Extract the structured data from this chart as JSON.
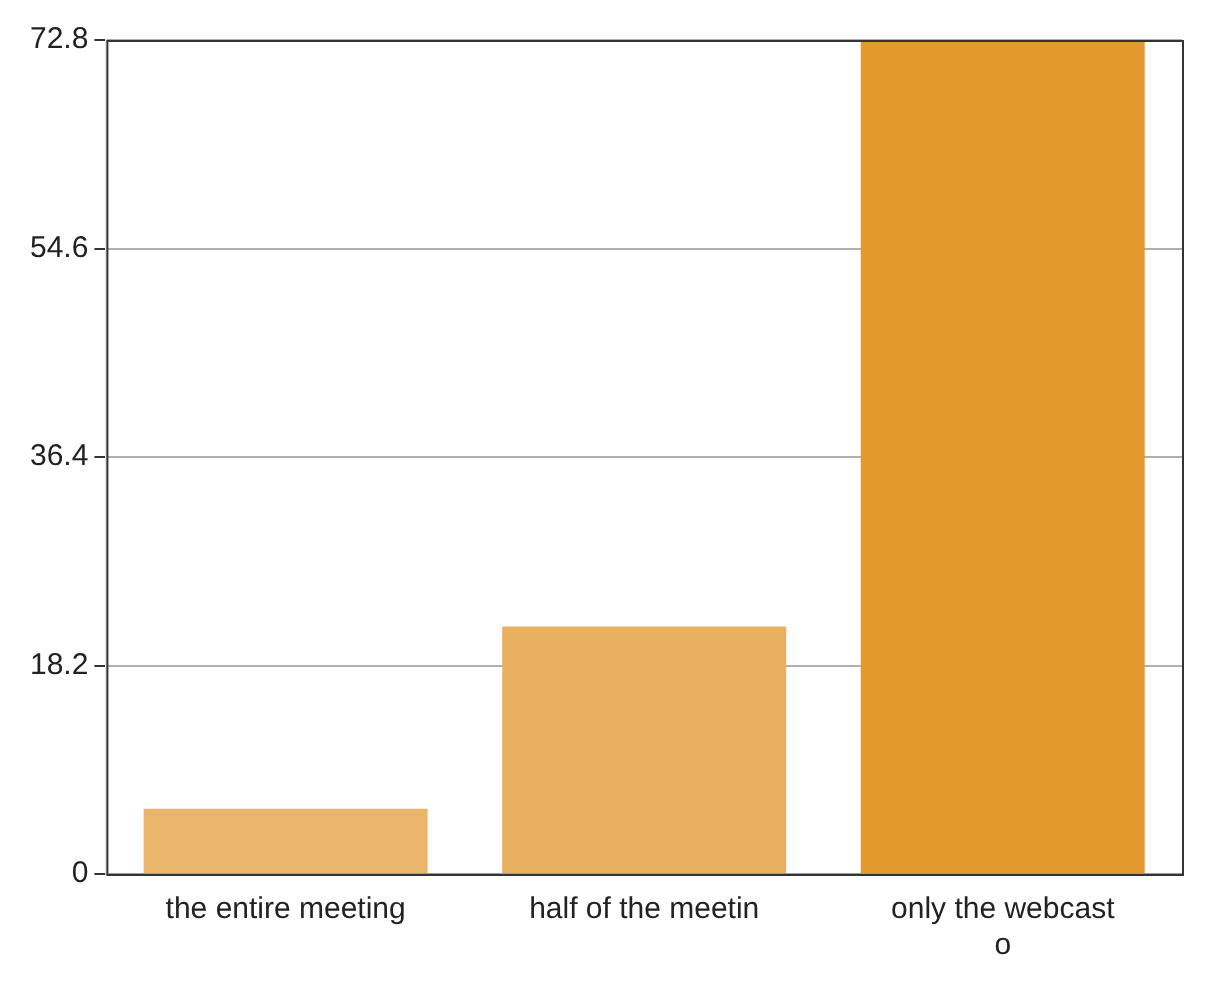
{
  "chart_data": {
    "type": "bar",
    "categories": [
      "the entire meeting",
      "half of the meetin",
      "only the webcast\no"
    ],
    "values": [
      5.7,
      21.6,
      72.8
    ],
    "colors": [
      "#e9b66c",
      "#e8b060",
      "#e39a2c"
    ],
    "ylim": [
      0,
      72.8
    ],
    "yticks": [
      0,
      18.2,
      36.4,
      54.6,
      72.8
    ],
    "grid": "y",
    "legend": false
  }
}
